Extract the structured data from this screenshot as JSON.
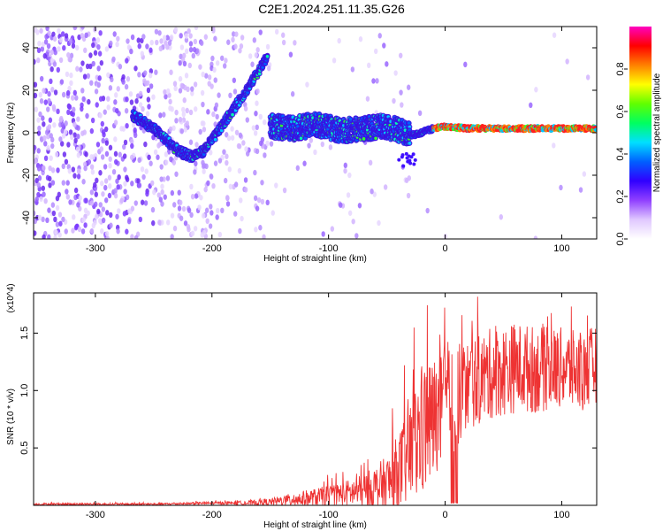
{
  "title": "C2E1.2024.251.11.35.G26",
  "chart_data": [
    {
      "type": "heatmap",
      "xlabel": "Height of straight line (km)",
      "ylabel": "Frequency (Hz)",
      "xlim": [
        -353,
        130
      ],
      "ylim": [
        -50,
        50
      ],
      "xticks": [
        -300,
        -200,
        -100,
        0,
        100
      ],
      "yticks": [
        -40,
        -20,
        0,
        20,
        40
      ],
      "colorbar": {
        "label": "Normalized spectral amplitude",
        "range": [
          0.0,
          1.0
        ],
        "ticks": [
          0.0,
          0.2,
          0.4,
          0.6,
          0.8
        ],
        "colors": [
          "#ffffff",
          "#e0c8ff",
          "#9040ff",
          "#3000ff",
          "#0060ff",
          "#00e0ff",
          "#00ff60",
          "#60ff00",
          "#ffff00",
          "#ff8000",
          "#ff0000",
          "#ff00c0"
        ]
      },
      "ridge_segments": [
        {
          "x": [
            -268,
            -258,
            -248,
            -238,
            -228,
            -218,
            -208,
            -198,
            -188,
            -178,
            -168,
            -158,
            -152
          ],
          "y": [
            8,
            5,
            1,
            -4,
            -9,
            -11,
            -9,
            -2,
            6,
            14,
            22,
            31,
            36
          ]
        },
        {
          "x": [
            -150,
            -130,
            -110,
            -90,
            -70,
            -50,
            -40,
            -30,
            -20,
            -10,
            0,
            20,
            40,
            60,
            80,
            100,
            130
          ],
          "y": [
            3,
            2,
            4,
            1,
            2,
            3,
            1,
            -1,
            0,
            2,
            3,
            2,
            2,
            2,
            2,
            2,
            2
          ]
        }
      ]
    },
    {
      "type": "line",
      "xlabel": "Height of straight line (km)",
      "ylabel": "SNR (10 * v/v)",
      "yscale_label": "(x10^4)",
      "xlim": [
        -353,
        130
      ],
      "ylim": [
        0,
        1.85
      ],
      "xticks": [
        -300,
        -200,
        -100,
        0,
        100
      ],
      "yticks": [
        0.5,
        1.0,
        1.5
      ],
      "color": "#ee3333",
      "envelope": {
        "x": [
          -353,
          -300,
          -250,
          -200,
          -170,
          -150,
          -130,
          -110,
          -90,
          -70,
          -50,
          -40,
          -30,
          -25,
          -20,
          -10,
          0,
          10,
          20,
          40,
          60,
          80,
          100,
          120,
          130
        ],
        "base": [
          0.01,
          0.01,
          0.01,
          0.02,
          0.02,
          0.03,
          0.05,
          0.07,
          0.1,
          0.12,
          0.18,
          0.28,
          0.45,
          0.55,
          0.65,
          0.75,
          0.85,
          0.95,
          1.05,
          1.15,
          1.2,
          1.18,
          1.2,
          1.15,
          1.25
        ],
        "amp": [
          0.01,
          0.01,
          0.01,
          0.01,
          0.02,
          0.03,
          0.06,
          0.08,
          0.1,
          0.15,
          0.25,
          0.35,
          0.45,
          0.55,
          0.6,
          0.55,
          0.5,
          0.45,
          0.4,
          0.4,
          0.4,
          0.38,
          0.35,
          0.35,
          0.35
        ]
      }
    }
  ]
}
